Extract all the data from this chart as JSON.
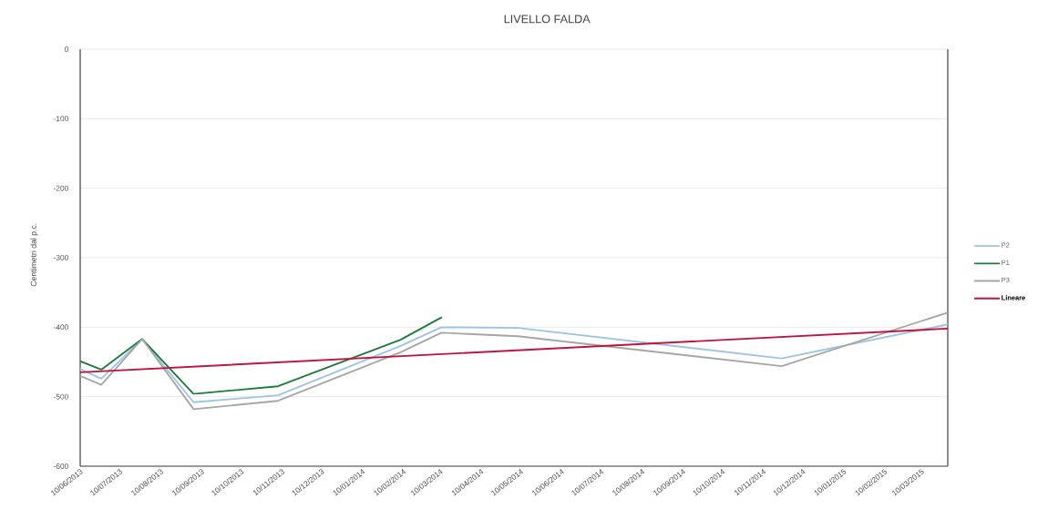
{
  "chart_data": {
    "type": "line",
    "title": "LIVELLO FALDA",
    "ylabel": "Centimetri dal p.c.",
    "x": [
      "2013-06-10",
      "2013-06-26",
      "2013-07-27",
      "2013-09-04",
      "2013-11-07",
      "2014-02-08",
      "2014-03-11",
      "2014-05-08",
      "2014-11-24",
      "2015-03-30"
    ],
    "series": [
      {
        "name": "P2",
        "color": "#9dc3e6",
        "values": [
          -460,
          -474,
          -417,
          -508,
          -498,
          -427,
          -400,
          -401,
          -445,
          -396
        ]
      },
      {
        "name": "P1",
        "color": "#1e7b3c",
        "values": [
          -449,
          -461,
          -417,
          -496,
          -485,
          -418,
          -386,
          null,
          null,
          null
        ]
      },
      {
        "name": "P3",
        "color": "#a6a6a6",
        "values": [
          -470,
          -483,
          -417,
          -518,
          -506,
          -436,
          -408,
          -413,
          -456,
          -379
        ]
      },
      {
        "name": "Lineare",
        "color": "#c0143c",
        "x": [
          "2013-06-10",
          "2015-03-30"
        ],
        "values": [
          -465,
          -402
        ]
      }
    ],
    "xlim": [
      "2013-06-10",
      "2015-03-30"
    ],
    "xticks": [
      {
        "value": "2013-06-10",
        "label": "10/06/2013"
      },
      {
        "value": "2013-07-10",
        "label": "10/07/2013"
      },
      {
        "value": "2013-08-10",
        "label": "10/08/2013"
      },
      {
        "value": "2013-09-10",
        "label": "10/09/2013"
      },
      {
        "value": "2013-10-10",
        "label": "10/10/2013"
      },
      {
        "value": "2013-11-10",
        "label": "10/11/2013"
      },
      {
        "value": "2013-12-10",
        "label": "10/12/2013"
      },
      {
        "value": "2014-01-10",
        "label": "10/01/2014"
      },
      {
        "value": "2014-02-10",
        "label": "10/02/2014"
      },
      {
        "value": "2014-03-10",
        "label": "10/03/2014"
      },
      {
        "value": "2014-04-10",
        "label": "10/04/2014"
      },
      {
        "value": "2014-05-10",
        "label": "10/05/2014"
      },
      {
        "value": "2014-06-10",
        "label": "10/06/2014"
      },
      {
        "value": "2014-07-10",
        "label": "10/07/2014"
      },
      {
        "value": "2014-08-10",
        "label": "10/08/2014"
      },
      {
        "value": "2014-09-10",
        "label": "10/09/2014"
      },
      {
        "value": "2014-10-10",
        "label": "10/10/2014"
      },
      {
        "value": "2014-11-10",
        "label": "10/11/2014"
      },
      {
        "value": "2014-12-10",
        "label": "10/12/2014"
      },
      {
        "value": "2015-01-10",
        "label": "10/01/2015"
      },
      {
        "value": "2015-02-10",
        "label": "10/02/2015"
      },
      {
        "value": "2015-03-10",
        "label": "10/03/2015"
      }
    ],
    "ylim": [
      -600,
      0
    ],
    "yticks": [
      0,
      -100,
      -200,
      -300,
      -400,
      -500,
      -600
    ],
    "grid": "y",
    "legend": "right",
    "line_style": "solid"
  }
}
